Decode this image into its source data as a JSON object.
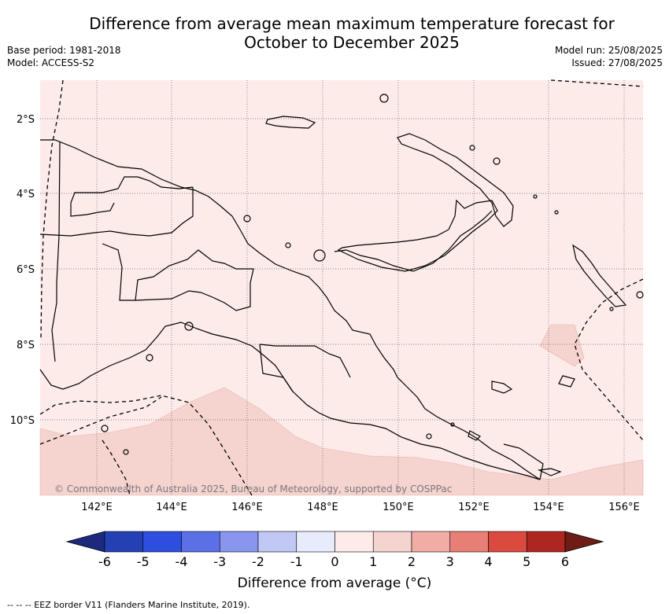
{
  "header": {
    "title_line1": "Difference from average mean maximum temperature forecast for",
    "title_line2": "October to December 2025",
    "base_period": "Base period: 1981-2018",
    "model": "Model: ACCESS-S2",
    "model_run": "Model run: 25/08/2025",
    "issued": "Issued: 27/08/2025"
  },
  "map": {
    "latitude_labels": [
      "2°S",
      "4°S",
      "6°S",
      "8°S",
      "10°S"
    ],
    "longitude_labels": [
      "142°E",
      "144°E",
      "146°E",
      "148°E",
      "150°E",
      "152°E",
      "154°E",
      "156°E"
    ],
    "background_category": "0 to 1",
    "warmer_category": "1 to 2",
    "credit": "© Commonwealth of Australia 2025, Bureau of Meteorology, supported by COSPPac"
  },
  "colorbar": {
    "ticks": [
      "-6",
      "-5",
      "-4",
      "-3",
      "-2",
      "-1",
      "0",
      "1",
      "2",
      "3",
      "4",
      "5",
      "6"
    ],
    "colors": [
      "#1b2a7d",
      "#2340b5",
      "#2e4ee0",
      "#5b70e6",
      "#8896ee",
      "#c1c8f6",
      "#e8ebfb",
      "#fcebe9",
      "#f5d3cf",
      "#f0aca5",
      "#e77f76",
      "#da4a3e",
      "#ad2620",
      "#6f1c17"
    ],
    "label": "Difference from average (°C)"
  },
  "legend": {
    "eez_label": "--  --  -- EEZ border V11 (Flanders Marine Institute, 2019)."
  }
}
